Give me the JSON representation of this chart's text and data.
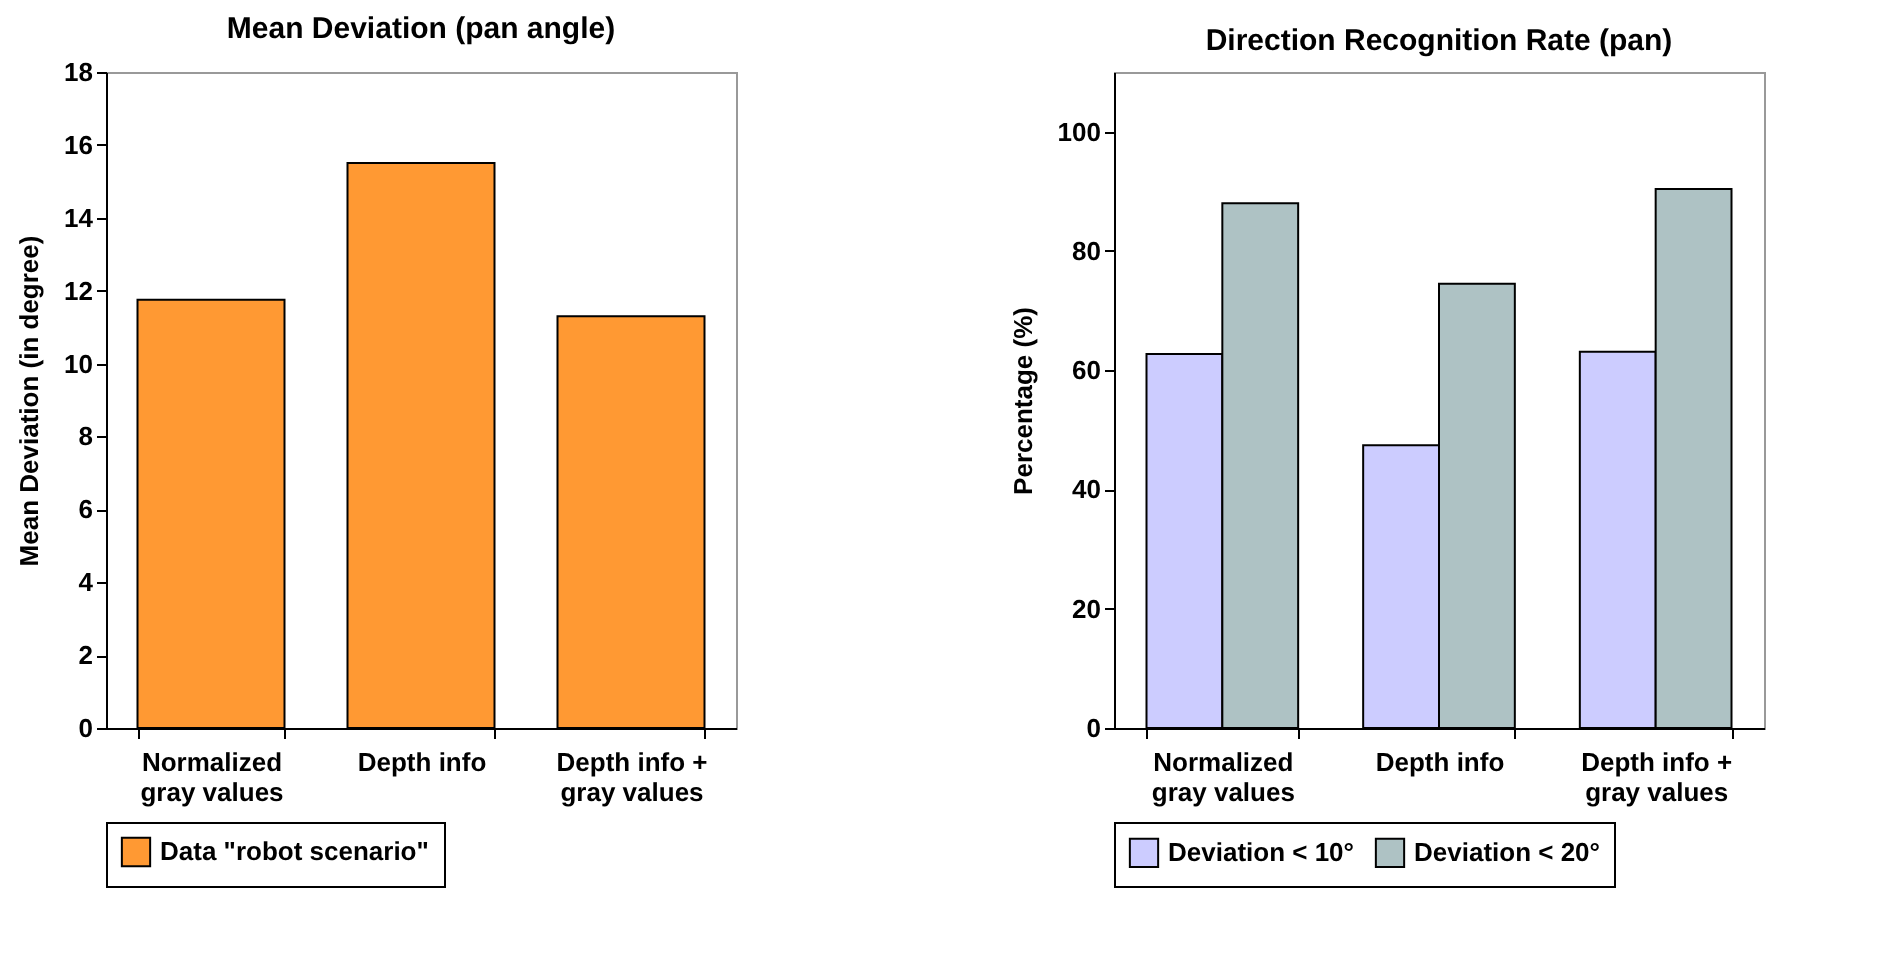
{
  "chart_data": [
    {
      "type": "bar",
      "title": "Mean Deviation (pan angle)",
      "ylabel": "Mean Deviation (in degree)",
      "categories": [
        "Normalized gray values",
        "Depth info",
        "Depth info + gray values"
      ],
      "series": [
        {
          "name": "Data \"robot scenario\"",
          "color": "#ff9933",
          "values": [
            11.75,
            15.5,
            11.3
          ]
        }
      ],
      "ylim": [
        0,
        18
      ],
      "yticks": [
        0,
        2,
        4,
        6,
        8,
        10,
        12,
        14,
        16,
        18
      ],
      "grid": false,
      "legend": "bottom"
    },
    {
      "type": "bar",
      "title": "Direction Recognition Rate (pan)",
      "ylabel": "Percentage (%)",
      "categories": [
        "Normalized gray values",
        "Depth info",
        "Depth info + gray values"
      ],
      "series": [
        {
          "name": "Deviation < 10°",
          "color": "#ccccff",
          "values": [
            62.7,
            47.4,
            63.1
          ]
        },
        {
          "name": "Deviation < 20°",
          "color": "#aec2c4",
          "values": [
            88,
            74.5,
            90.4
          ]
        }
      ],
      "ylim": [
        0,
        110
      ],
      "yticks": [
        0,
        20,
        40,
        60,
        80,
        100
      ],
      "grid": false,
      "legend": "bottom"
    }
  ]
}
